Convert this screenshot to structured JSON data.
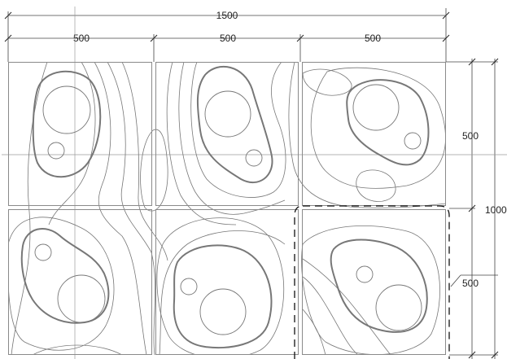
{
  "dimensions": {
    "total_width": "1500",
    "column_1": "500",
    "column_2": "500",
    "column_3": "500",
    "total_height": "1000",
    "row_1": "500",
    "row_2": "500"
  },
  "colors": {
    "panel_stroke": "#8a8a8a",
    "contour_stroke": "#777777",
    "dimension_stroke": "#444444",
    "dashed_highlight": "#111111"
  },
  "grid": {
    "columns": 3,
    "rows": 2,
    "highlighted_panel": {
      "column": 3,
      "row": 2
    }
  }
}
